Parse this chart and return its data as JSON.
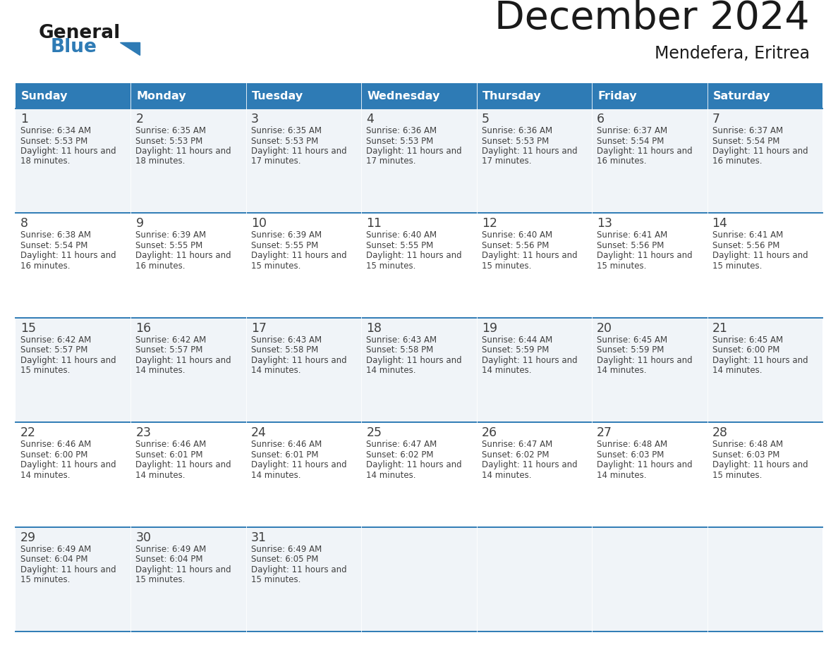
{
  "title": "December 2024",
  "subtitle": "Mendefera, Eritrea",
  "header_color": "#2E7BB5",
  "header_text_color": "#FFFFFF",
  "day_names": [
    "Sunday",
    "Monday",
    "Tuesday",
    "Wednesday",
    "Thursday",
    "Friday",
    "Saturday"
  ],
  "bg_color": "#FFFFFF",
  "cell_bg_even": "#F0F4F8",
  "cell_bg_odd": "#FFFFFF",
  "grid_line_color": "#2E7BB5",
  "text_color": "#404040",
  "title_color": "#1A1A1A",
  "logo_general_color": "#1A1A1A",
  "logo_blue_color": "#2E7BB5",
  "logo_triangle_color": "#2E7BB5",
  "calendar": [
    [
      {
        "day": 1,
        "sunrise": "6:34 AM",
        "sunset": "5:53 PM",
        "daylight_h": "11 hours",
        "daylight_m": "18 minutes"
      },
      {
        "day": 2,
        "sunrise": "6:35 AM",
        "sunset": "5:53 PM",
        "daylight_h": "11 hours",
        "daylight_m": "18 minutes"
      },
      {
        "day": 3,
        "sunrise": "6:35 AM",
        "sunset": "5:53 PM",
        "daylight_h": "11 hours",
        "daylight_m": "17 minutes"
      },
      {
        "day": 4,
        "sunrise": "6:36 AM",
        "sunset": "5:53 PM",
        "daylight_h": "11 hours",
        "daylight_m": "17 minutes"
      },
      {
        "day": 5,
        "sunrise": "6:36 AM",
        "sunset": "5:53 PM",
        "daylight_h": "11 hours",
        "daylight_m": "17 minutes"
      },
      {
        "day": 6,
        "sunrise": "6:37 AM",
        "sunset": "5:54 PM",
        "daylight_h": "11 hours",
        "daylight_m": "16 minutes"
      },
      {
        "day": 7,
        "sunrise": "6:37 AM",
        "sunset": "5:54 PM",
        "daylight_h": "11 hours",
        "daylight_m": "16 minutes"
      }
    ],
    [
      {
        "day": 8,
        "sunrise": "6:38 AM",
        "sunset": "5:54 PM",
        "daylight_h": "11 hours",
        "daylight_m": "16 minutes"
      },
      {
        "day": 9,
        "sunrise": "6:39 AM",
        "sunset": "5:55 PM",
        "daylight_h": "11 hours",
        "daylight_m": "16 minutes"
      },
      {
        "day": 10,
        "sunrise": "6:39 AM",
        "sunset": "5:55 PM",
        "daylight_h": "11 hours",
        "daylight_m": "15 minutes"
      },
      {
        "day": 11,
        "sunrise": "6:40 AM",
        "sunset": "5:55 PM",
        "daylight_h": "11 hours",
        "daylight_m": "15 minutes"
      },
      {
        "day": 12,
        "sunrise": "6:40 AM",
        "sunset": "5:56 PM",
        "daylight_h": "11 hours",
        "daylight_m": "15 minutes"
      },
      {
        "day": 13,
        "sunrise": "6:41 AM",
        "sunset": "5:56 PM",
        "daylight_h": "11 hours",
        "daylight_m": "15 minutes"
      },
      {
        "day": 14,
        "sunrise": "6:41 AM",
        "sunset": "5:56 PM",
        "daylight_h": "11 hours",
        "daylight_m": "15 minutes"
      }
    ],
    [
      {
        "day": 15,
        "sunrise": "6:42 AM",
        "sunset": "5:57 PM",
        "daylight_h": "11 hours",
        "daylight_m": "15 minutes"
      },
      {
        "day": 16,
        "sunrise": "6:42 AM",
        "sunset": "5:57 PM",
        "daylight_h": "11 hours",
        "daylight_m": "14 minutes"
      },
      {
        "day": 17,
        "sunrise": "6:43 AM",
        "sunset": "5:58 PM",
        "daylight_h": "11 hours",
        "daylight_m": "14 minutes"
      },
      {
        "day": 18,
        "sunrise": "6:43 AM",
        "sunset": "5:58 PM",
        "daylight_h": "11 hours",
        "daylight_m": "14 minutes"
      },
      {
        "day": 19,
        "sunrise": "6:44 AM",
        "sunset": "5:59 PM",
        "daylight_h": "11 hours",
        "daylight_m": "14 minutes"
      },
      {
        "day": 20,
        "sunrise": "6:45 AM",
        "sunset": "5:59 PM",
        "daylight_h": "11 hours",
        "daylight_m": "14 minutes"
      },
      {
        "day": 21,
        "sunrise": "6:45 AM",
        "sunset": "6:00 PM",
        "daylight_h": "11 hours",
        "daylight_m": "14 minutes"
      }
    ],
    [
      {
        "day": 22,
        "sunrise": "6:46 AM",
        "sunset": "6:00 PM",
        "daylight_h": "11 hours",
        "daylight_m": "14 minutes"
      },
      {
        "day": 23,
        "sunrise": "6:46 AM",
        "sunset": "6:01 PM",
        "daylight_h": "11 hours",
        "daylight_m": "14 minutes"
      },
      {
        "day": 24,
        "sunrise": "6:46 AM",
        "sunset": "6:01 PM",
        "daylight_h": "11 hours",
        "daylight_m": "14 minutes"
      },
      {
        "day": 25,
        "sunrise": "6:47 AM",
        "sunset": "6:02 PM",
        "daylight_h": "11 hours",
        "daylight_m": "14 minutes"
      },
      {
        "day": 26,
        "sunrise": "6:47 AM",
        "sunset": "6:02 PM",
        "daylight_h": "11 hours",
        "daylight_m": "14 minutes"
      },
      {
        "day": 27,
        "sunrise": "6:48 AM",
        "sunset": "6:03 PM",
        "daylight_h": "11 hours",
        "daylight_m": "14 minutes"
      },
      {
        "day": 28,
        "sunrise": "6:48 AM",
        "sunset": "6:03 PM",
        "daylight_h": "11 hours",
        "daylight_m": "15 minutes"
      }
    ],
    [
      {
        "day": 29,
        "sunrise": "6:49 AM",
        "sunset": "6:04 PM",
        "daylight_h": "11 hours",
        "daylight_m": "15 minutes"
      },
      {
        "day": 30,
        "sunrise": "6:49 AM",
        "sunset": "6:04 PM",
        "daylight_h": "11 hours",
        "daylight_m": "15 minutes"
      },
      {
        "day": 31,
        "sunrise": "6:49 AM",
        "sunset": "6:05 PM",
        "daylight_h": "11 hours",
        "daylight_m": "15 minutes"
      },
      null,
      null,
      null,
      null
    ]
  ]
}
